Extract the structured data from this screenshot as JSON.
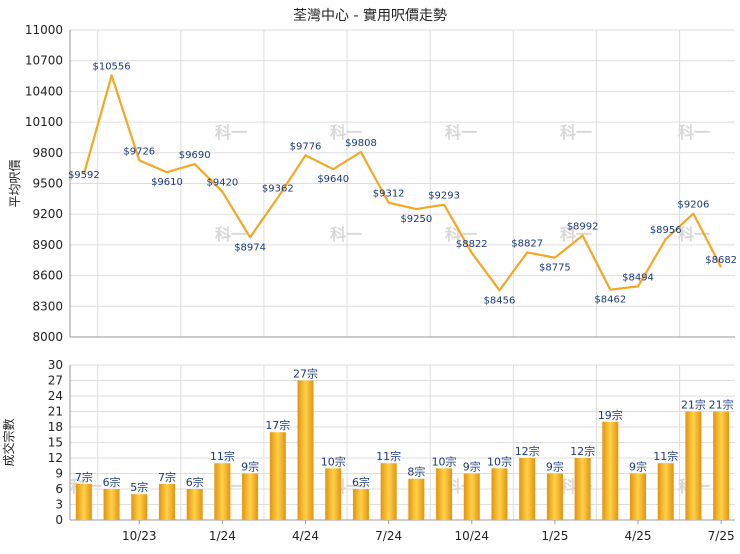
{
  "title": "荃灣中心 - 實用呎價走勢",
  "watermark": "科一",
  "colors": {
    "line": "#f5a623",
    "bar_dark": "#e3930e",
    "bar_light": "#ffd24a",
    "grid": "#dddddd",
    "axis": "#999999",
    "label": "#1a3a7a"
  },
  "chart_data": [
    {
      "type": "line",
      "ylabel": "平均呎價",
      "ylim": [
        8000,
        11000
      ],
      "yticks": [
        "11000",
        "10700",
        "10400",
        "10100",
        "9800",
        "9500",
        "9200",
        "8900",
        "8600",
        "8300",
        "8000"
      ],
      "grid": true,
      "values": [
        9592,
        10556,
        9726,
        9610,
        9690,
        9420,
        8974,
        9362,
        9776,
        9640,
        9808,
        9312,
        9250,
        9293,
        8822,
        8456,
        8827,
        8775,
        8992,
        8462,
        8494,
        8956,
        9206,
        8682
      ],
      "labels": [
        "$9592",
        "$10556",
        "$9726",
        "$9610",
        "$9690",
        "$9420",
        "$8974",
        "$9362",
        "$9776",
        "$9640",
        "$9808",
        "$9312",
        "$9250",
        "$9293",
        "$8822",
        "$8456",
        "$8827",
        "$8775",
        "$8992",
        "$8462",
        "$8494",
        "$8956",
        "$9206",
        "$8682"
      ]
    },
    {
      "type": "bar",
      "ylabel": "成交宗數",
      "ylim": [
        0,
        30
      ],
      "yticks": [
        "30",
        "27",
        "24",
        "21",
        "18",
        "15",
        "12",
        "9",
        "6",
        "3",
        "0"
      ],
      "grid": true,
      "x_ticks": [
        {
          "index": 2,
          "label": "10/23"
        },
        {
          "index": 5,
          "label": "1/24"
        },
        {
          "index": 8,
          "label": "4/24"
        },
        {
          "index": 11,
          "label": "7/24"
        },
        {
          "index": 14,
          "label": "10/24"
        },
        {
          "index": 17,
          "label": "1/25"
        },
        {
          "index": 20,
          "label": "4/25"
        },
        {
          "index": 23,
          "label": "7/25"
        }
      ],
      "values": [
        7,
        6,
        5,
        7,
        6,
        11,
        9,
        17,
        27,
        10,
        6,
        11,
        8,
        10,
        9,
        10,
        12,
        9,
        12,
        19,
        9,
        11,
        21,
        21
      ],
      "labels": [
        "7宗",
        "6宗",
        "5宗",
        "7宗",
        "6宗",
        "11宗",
        "9宗",
        "17宗",
        "27宗",
        "10宗",
        "6宗",
        "11宗",
        "8宗",
        "10宗",
        "9宗",
        "10宗",
        "12宗",
        "9宗",
        "12宗",
        "19宗",
        "9宗",
        "11宗",
        "21宗",
        "21宗"
      ]
    }
  ]
}
